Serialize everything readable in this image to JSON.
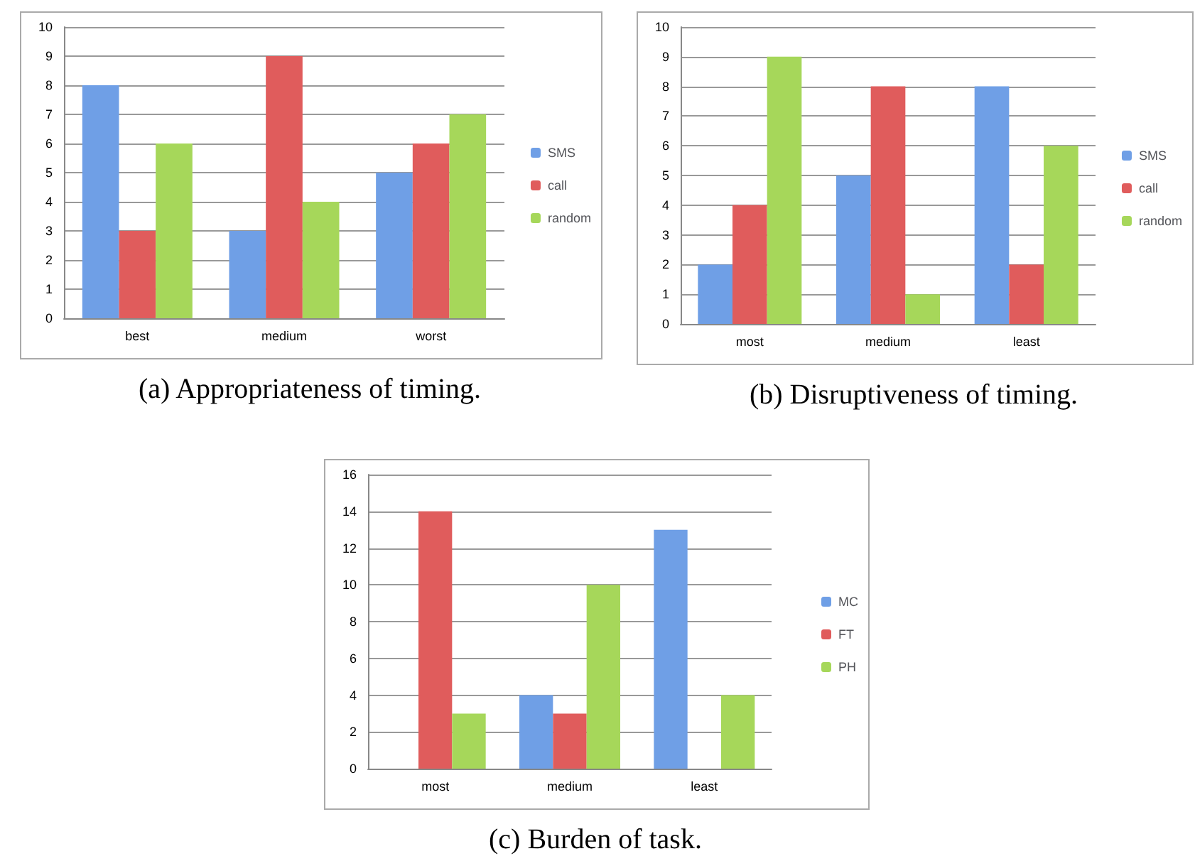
{
  "chart_data": [
    {
      "type": "bar",
      "title": "(a) Appropriateness of timing.",
      "categories": [
        "best",
        "medium",
        "worst"
      ],
      "series": [
        {
          "name": "SMS",
          "color": "#6f9fe6",
          "values": [
            8,
            3,
            5
          ]
        },
        {
          "name": "call",
          "color": "#e05c5c",
          "values": [
            3,
            9,
            6
          ]
        },
        {
          "name": "random",
          "color": "#a6d75a",
          "values": [
            6,
            4,
            7
          ]
        }
      ],
      "ylim": [
        0,
        10
      ],
      "yticks": [
        0,
        1,
        2,
        3,
        4,
        5,
        6,
        7,
        8,
        9,
        10
      ],
      "grid": "y",
      "legend": "right"
    },
    {
      "type": "bar",
      "title": "(b) Disruptiveness of timing.",
      "categories": [
        "most",
        "medium",
        "least"
      ],
      "series": [
        {
          "name": "SMS",
          "color": "#6f9fe6",
          "values": [
            2,
            5,
            8
          ]
        },
        {
          "name": "call",
          "color": "#e05c5c",
          "values": [
            4,
            8,
            2
          ]
        },
        {
          "name": "random",
          "color": "#a6d75a",
          "values": [
            9,
            1,
            6
          ]
        }
      ],
      "ylim": [
        0,
        10
      ],
      "yticks": [
        0,
        1,
        2,
        3,
        4,
        5,
        6,
        7,
        8,
        9,
        10
      ],
      "grid": "y",
      "legend": "right"
    },
    {
      "type": "bar",
      "title": "(c) Burden of task.",
      "categories": [
        "most",
        "medium",
        "least"
      ],
      "series": [
        {
          "name": "MC",
          "color": "#6f9fe6",
          "values": [
            0,
            4,
            13
          ]
        },
        {
          "name": "FT",
          "color": "#e05c5c",
          "values": [
            14,
            3,
            0
          ]
        },
        {
          "name": "PH",
          "color": "#a6d75a",
          "values": [
            3,
            10,
            4
          ]
        }
      ],
      "ylim": [
        0,
        16
      ],
      "yticks": [
        0,
        2,
        4,
        6,
        8,
        10,
        12,
        14,
        16
      ],
      "grid": "y",
      "legend": "right"
    }
  ]
}
